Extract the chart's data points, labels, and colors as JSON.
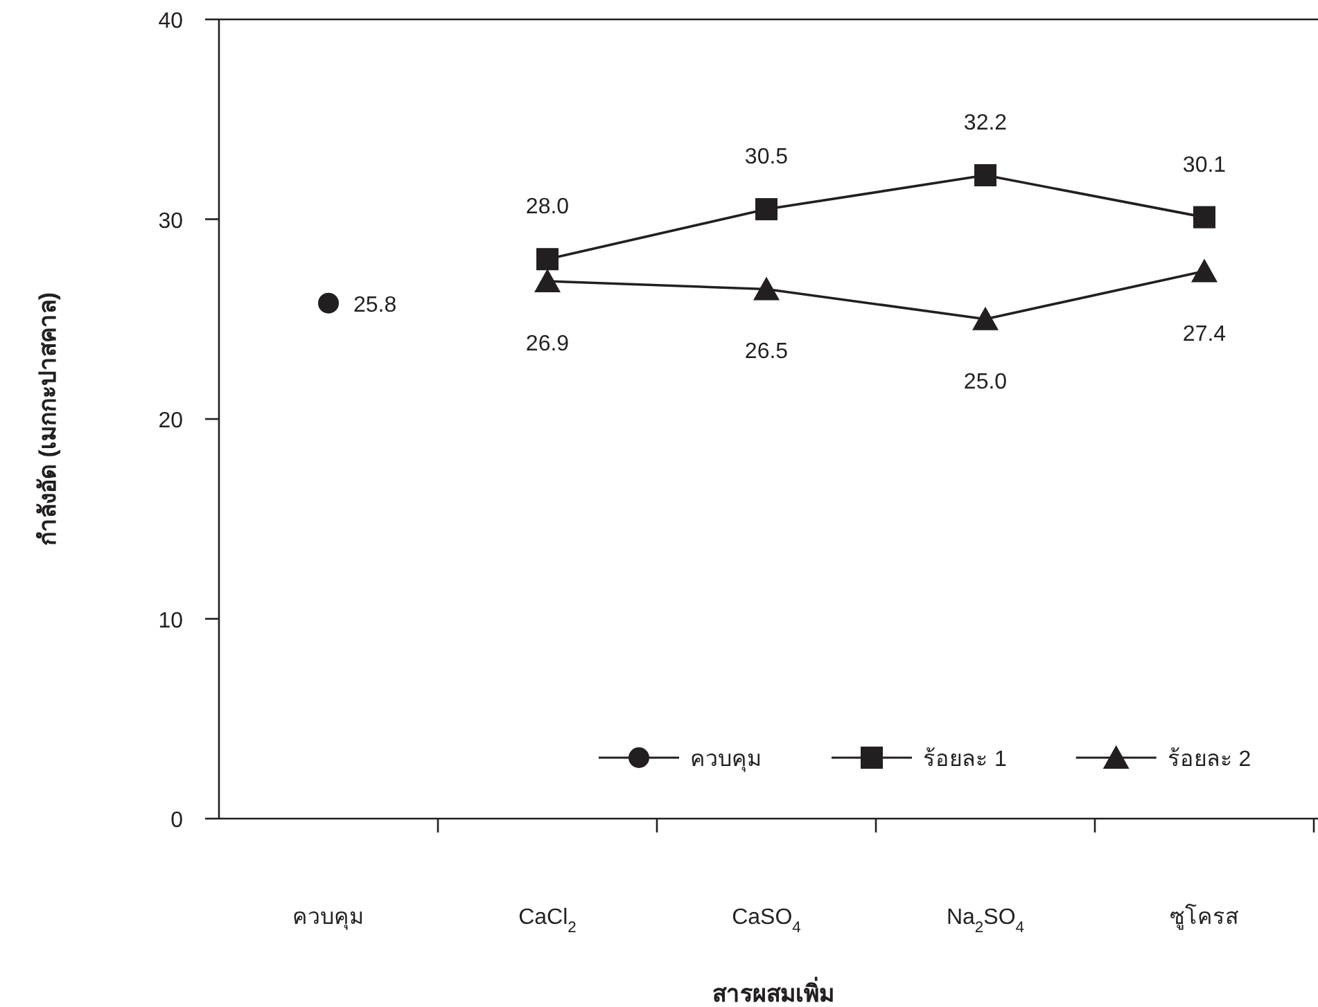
{
  "chart_data": {
    "type": "line",
    "xlabel": "สารผสมเพิ่ม",
    "ylabel": "กำลังอัด (เมกกะปาสคาล)",
    "categories": [
      "ควบคุม",
      "CaCl$_{2}$",
      "CaSO$_{4}$",
      "Na$_{2}$SO$_{4}$",
      "ซูโครส"
    ],
    "ylim": [
      0,
      40
    ],
    "yticks": [
      0,
      10,
      20,
      30,
      40
    ],
    "grid": false,
    "legend": "bottom right",
    "series": [
      {
        "name": "ควบคุม",
        "color": "#231f20",
        "marker": "circle",
        "values": [
          25.8,
          null,
          null,
          null,
          null
        ],
        "value_labels": [
          "25.8",
          null,
          null,
          null,
          null
        ]
      },
      {
        "name": "ร้อยละ 1",
        "color": "#231f20",
        "marker": "square",
        "values": [
          null,
          28.0,
          30.5,
          32.2,
          30.1
        ],
        "value_labels": [
          null,
          "28.0",
          "30.5",
          "32.2",
          "30.1"
        ]
      },
      {
        "name": "ร้อยละ 2",
        "color": "#231f20",
        "marker": "triangle",
        "values": [
          null,
          26.9,
          26.5,
          25.0,
          27.4
        ],
        "value_labels": [
          null,
          "26.9",
          "26.5",
          "25.0",
          "27.4"
        ]
      }
    ]
  }
}
